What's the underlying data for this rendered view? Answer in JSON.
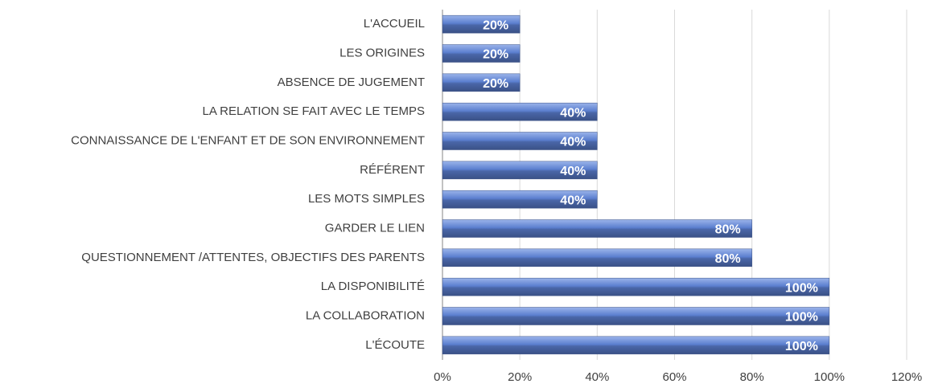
{
  "chart_data": {
    "type": "bar",
    "orientation": "horizontal",
    "categories": [
      "L'ACCUEIL",
      "LES ORIGINES",
      "ABSENCE DE JUGEMENT",
      "LA RELATION SE FAIT AVEC LE TEMPS",
      "CONNAISSANCE DE L'ENFANT ET DE SON ENVIRONNEMENT",
      "RÉFÉRENT",
      "LES MOTS SIMPLES",
      "GARDER LE LIEN",
      "QUESTIONNEMENT /ATTENTES, OBJECTIFS DES PARENTS",
      "LA DISPONIBILITÉ",
      "LA COLLABORATION",
      "L'ÉCOUTE"
    ],
    "values": [
      20,
      20,
      20,
      40,
      40,
      40,
      40,
      80,
      80,
      100,
      100,
      100
    ],
    "value_labels": [
      "20%",
      "20%",
      "20%",
      "40%",
      "40%",
      "40%",
      "40%",
      "80%",
      "80%",
      "100%",
      "100%",
      "100%"
    ],
    "color": "#5b7fcf",
    "xlim": [
      0,
      120
    ],
    "xticks": [
      {
        "value": 0,
        "label": "0%"
      },
      {
        "value": 20,
        "label": "20%"
      },
      {
        "value": 40,
        "label": "40%"
      },
      {
        "value": 60,
        "label": "60%"
      },
      {
        "value": 80,
        "label": "80%"
      },
      {
        "value": 100,
        "label": "100%"
      },
      {
        "value": 120,
        "label": "120%"
      }
    ],
    "grid": true
  }
}
